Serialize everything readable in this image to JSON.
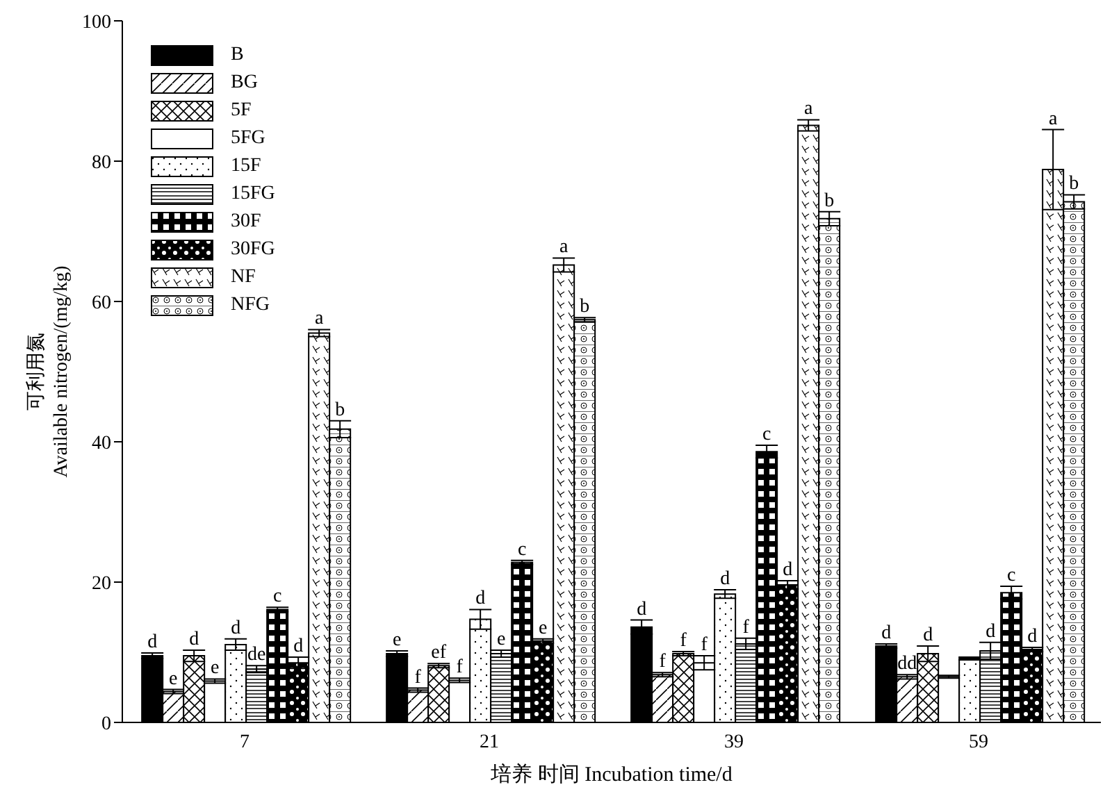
{
  "chart_data": {
    "type": "bar",
    "xlabel": "培养 时间 Incubation time/d",
    "ylabel": "可利用氮\nAvailable nitrogen/(mg/kg)",
    "categories": [
      "7",
      "21",
      "39",
      "59"
    ],
    "ylim": [
      0,
      100
    ],
    "yticks": [
      0,
      20,
      40,
      60,
      80,
      100
    ],
    "grid": false,
    "legend": "top left",
    "series": [
      {
        "name": "B",
        "color": "#000000",
        "values": [
          9.5,
          9.8,
          13.6,
          10.9
        ],
        "errors": [
          0.4,
          0.4,
          1.0,
          0.3
        ],
        "value_labels": [
          "d",
          "e",
          "d",
          "d"
        ]
      },
      {
        "name": "BG",
        "color": "#000000",
        "values": [
          4.4,
          4.6,
          6.8,
          6.5
        ],
        "errors": [
          0.3,
          0.3,
          0.3,
          0.3
        ],
        "value_labels": [
          "e",
          "f",
          "f",
          "dd"
        ]
      },
      {
        "name": "5F",
        "color": "#000000",
        "values": [
          9.5,
          8.1,
          9.8,
          9.8
        ],
        "errors": [
          0.8,
          0.3,
          0.3,
          1.1
        ],
        "value_labels": [
          "d",
          "ef",
          "f",
          "d"
        ]
      },
      {
        "name": "5FG",
        "color": "#000000",
        "values": [
          5.9,
          6.0,
          8.5,
          6.5
        ],
        "errors": [
          0.3,
          0.3,
          1.0,
          0.2
        ],
        "value_labels": [
          "e",
          "f",
          "f",
          null
        ]
      },
      {
        "name": "15F",
        "color": "#000000",
        "values": [
          11.1,
          14.7,
          18.3,
          9.1
        ],
        "errors": [
          0.8,
          1.4,
          0.6,
          0.2
        ],
        "value_labels": [
          "d",
          "d",
          "d",
          null
        ]
      },
      {
        "name": "15FG",
        "color": "#000000",
        "values": [
          7.6,
          9.8,
          11.2,
          10.2
        ],
        "errors": [
          0.5,
          0.5,
          0.8,
          1.2
        ],
        "value_labels": [
          "de",
          "e",
          "f",
          "d"
        ]
      },
      {
        "name": "30F",
        "color": "#000000",
        "values": [
          16.1,
          22.8,
          38.6,
          18.5
        ],
        "errors": [
          0.3,
          0.3,
          0.9,
          0.9
        ],
        "value_labels": [
          "c",
          "c",
          "c",
          "c"
        ]
      },
      {
        "name": "30FG",
        "color": "#000000",
        "values": [
          8.5,
          11.6,
          19.6,
          10.4
        ],
        "errors": [
          0.8,
          0.3,
          0.6,
          0.3
        ],
        "value_labels": [
          "d",
          "e",
          "d",
          "d"
        ]
      },
      {
        "name": "NF",
        "color": "#000000",
        "values": [
          55.5,
          65.2,
          85.1,
          78.8
        ],
        "errors": [
          0.5,
          1.0,
          0.8,
          5.7
        ],
        "value_labels": [
          "a",
          "a",
          "a",
          "a"
        ]
      },
      {
        "name": "NFG",
        "color": "#000000",
        "values": [
          41.8,
          57.4,
          71.8,
          74.2
        ],
        "errors": [
          1.2,
          0.3,
          1.0,
          1.0
        ],
        "value_labels": [
          "b",
          "b",
          "b",
          "b"
        ]
      }
    ]
  }
}
